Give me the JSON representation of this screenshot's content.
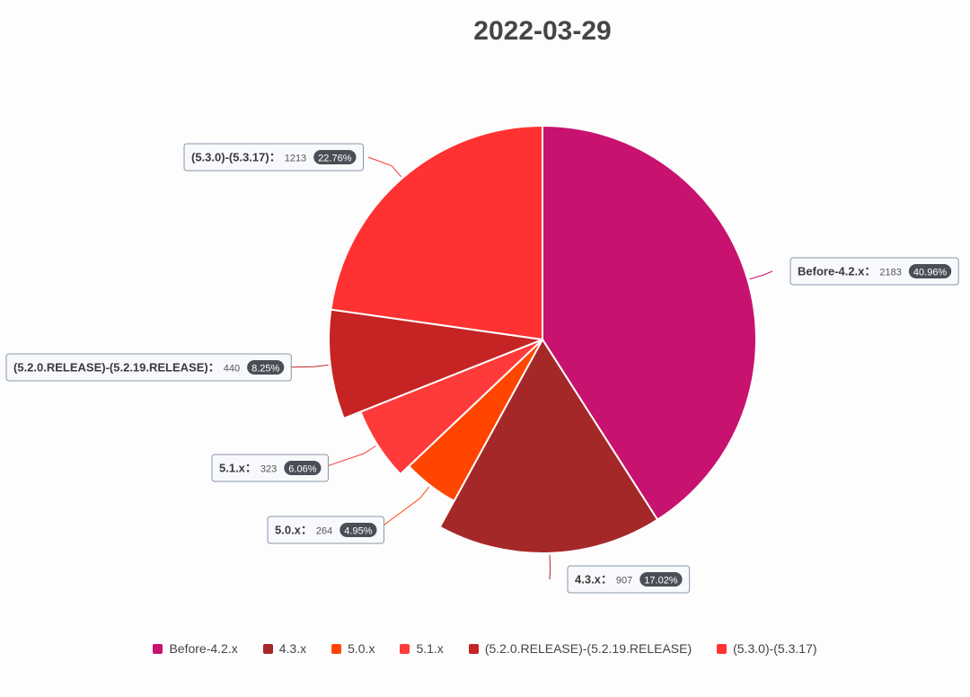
{
  "chart_data": {
    "type": "pie",
    "title": "2022-03-29",
    "legend_position": "bottom",
    "slices": [
      {
        "name": "Before-4.2.x",
        "value": 2183,
        "percent": "40.96%",
        "color": "#c8126f"
      },
      {
        "name": "4.3.x",
        "value": 907,
        "percent": "17.02%",
        "color": "#a52828"
      },
      {
        "name": "5.0.x",
        "value": 264,
        "percent": "4.95%",
        "color": "#ff4500"
      },
      {
        "name": "5.1.x",
        "value": 323,
        "percent": "6.06%",
        "color": "#ff3a3a"
      },
      {
        "name": "(5.2.0.RELEASE)-(5.2.19.RELEASE)",
        "value": 440,
        "percent": "8.25%",
        "color": "#c62424"
      },
      {
        "name": "(5.3.0)-(5.3.17)",
        "value": 1213,
        "percent": "22.76%",
        "color": "#ff3131"
      }
    ]
  }
}
